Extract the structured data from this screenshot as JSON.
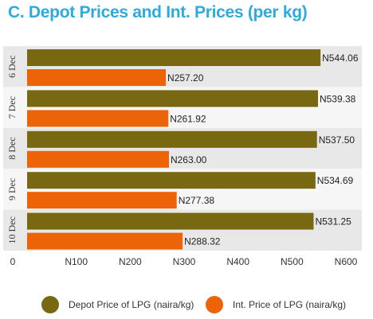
{
  "title": "C. Depot Prices and Int. Prices (per kg)",
  "colors": {
    "title": "#2eaadc",
    "depot": "#776811",
    "intl": "#ec6407",
    "band": "#e8e8e8"
  },
  "chart_data": {
    "type": "bar",
    "orientation": "horizontal",
    "categories": [
      "6 Dec",
      "7 Dec",
      "8 Dec",
      "9 Dec",
      "10 Dec"
    ],
    "series": [
      {
        "name": "Depot Price of LPG (naira/kg)",
        "values": [
          544.06,
          539.38,
          537.5,
          534.69,
          531.25
        ],
        "labels": [
          "N544.06",
          "N539.38",
          "N537.50",
          "N534.69",
          "N531.25"
        ]
      },
      {
        "name": "Int. Price of LPG (naira/kg)",
        "values": [
          257.2,
          261.92,
          263.0,
          277.38,
          288.32
        ],
        "labels": [
          "N257.20",
          "N261.92",
          "N263.00",
          "N277.38",
          "N288.32"
        ]
      }
    ],
    "xlim": [
      0,
      600
    ],
    "xticks": [
      0,
      100,
      200,
      300,
      400,
      500,
      600
    ],
    "xtick_labels": [
      "0",
      "N100",
      "N200",
      "N300",
      "N400",
      "N500",
      "N600"
    ],
    "legend_position": "bottom",
    "grid": false
  }
}
